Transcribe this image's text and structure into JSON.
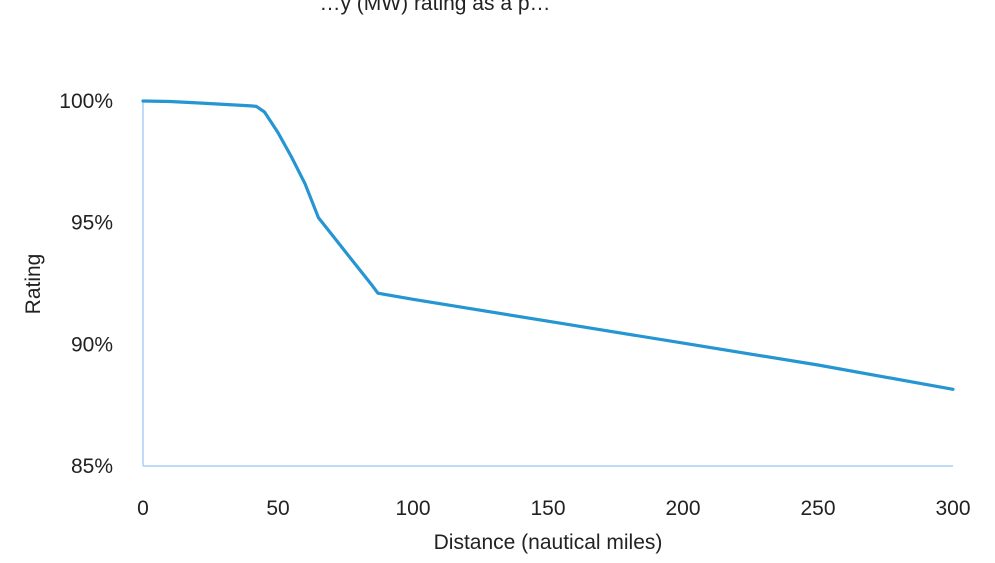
{
  "chart_data": {
    "type": "line",
    "title": "…y (MW) rating as a p…",
    "xlabel": "Distance (nautical miles)",
    "ylabel": "Rating",
    "xlim": [
      0,
      300
    ],
    "ylim": [
      85,
      100
    ],
    "x_ticks": [
      0,
      50,
      100,
      150,
      200,
      250,
      300
    ],
    "x_tick_labels": [
      "0",
      "50",
      "100",
      "150",
      "200",
      "250",
      "300"
    ],
    "y_ticks": [
      85,
      90,
      95,
      100
    ],
    "y_tick_labels": [
      "85%",
      "90%",
      "95%",
      "100%"
    ],
    "grid": false,
    "legend": "none",
    "series": [
      {
        "color": "#2596d1",
        "x": [
          0,
          10,
          20,
          30,
          40,
          42,
          45,
          50,
          55,
          60,
          65,
          70,
          75,
          80,
          85,
          87,
          100,
          150,
          200,
          250,
          300
        ],
        "y": [
          100,
          99.98,
          99.92,
          99.86,
          99.8,
          99.78,
          99.55,
          98.7,
          97.7,
          96.6,
          95.2,
          94.5,
          93.8,
          93.1,
          92.4,
          92.1,
          91.85,
          90.95,
          90.05,
          89.15,
          88.15
        ]
      }
    ],
    "axis_color": "#a9d1f5"
  }
}
